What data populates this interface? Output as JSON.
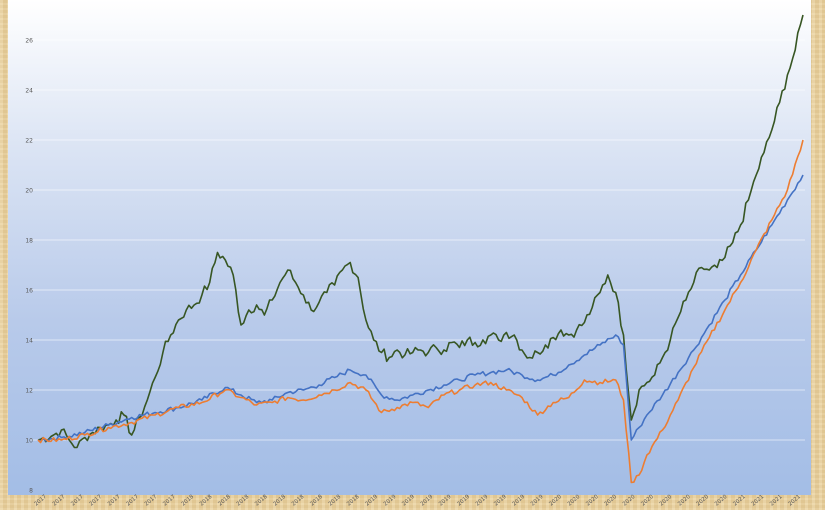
{
  "chart_data": {
    "type": "line",
    "title": "",
    "xlabel": "",
    "ylabel": "",
    "ylim": [
      8,
      27
    ],
    "y_ticks": [
      "8",
      "10",
      "12",
      "14",
      "16",
      "18",
      "20",
      "22",
      "24",
      "26"
    ],
    "x_tick_labels": [
      "2017",
      "2017",
      "2017",
      "2017",
      "2017",
      "2017",
      "2017",
      "2017",
      "2018",
      "2018",
      "2018",
      "2018",
      "2018",
      "2018",
      "2018",
      "2018",
      "2018",
      "2018",
      "2019",
      "2019",
      "2019",
      "2019",
      "2019",
      "2019",
      "2019",
      "2019",
      "2019",
      "2019",
      "2020",
      "2020",
      "2020",
      "2020",
      "2020",
      "2020",
      "2020",
      "2020",
      "2020",
      "2020",
      "2021",
      "2021",
      "2021",
      "2021"
    ],
    "grid": true,
    "legend": "none",
    "series": [
      {
        "color": "#375623",
        "points": [
          [
            0,
            10.0
          ],
          [
            2,
            10.2
          ],
          [
            3,
            10.4
          ],
          [
            4,
            10.0
          ],
          [
            5,
            9.7
          ],
          [
            6,
            10.1
          ],
          [
            7,
            10.3
          ],
          [
            8,
            10.5
          ],
          [
            9,
            10.6
          ],
          [
            10,
            10.8
          ],
          [
            11,
            11.0
          ],
          [
            12,
            10.2
          ],
          [
            13,
            10.9
          ],
          [
            14,
            11.6
          ],
          [
            15,
            12.5
          ],
          [
            16,
            13.5
          ],
          [
            17,
            14.2
          ],
          [
            18,
            14.8
          ],
          [
            19,
            15.2
          ],
          [
            20,
            15.4
          ],
          [
            21,
            15.8
          ],
          [
            22,
            16.3
          ],
          [
            23,
            17.5
          ],
          [
            24,
            17.2
          ],
          [
            25,
            16.6
          ],
          [
            26,
            14.6
          ],
          [
            27,
            15.2
          ],
          [
            28,
            15.4
          ],
          [
            29,
            15.0
          ],
          [
            30,
            15.6
          ],
          [
            31,
            16.3
          ],
          [
            32,
            16.8
          ],
          [
            33,
            16.3
          ],
          [
            34,
            15.8
          ],
          [
            35,
            15.2
          ],
          [
            36,
            15.5
          ],
          [
            37,
            15.9
          ],
          [
            38,
            16.2
          ],
          [
            39,
            16.8
          ],
          [
            40,
            17.1
          ],
          [
            41,
            16.5
          ],
          [
            42,
            14.8
          ],
          [
            43,
            14.0
          ],
          [
            44,
            13.5
          ],
          [
            45,
            13.3
          ],
          [
            46,
            13.6
          ],
          [
            47,
            13.4
          ],
          [
            48,
            13.5
          ],
          [
            49,
            13.6
          ],
          [
            50,
            13.5
          ],
          [
            51,
            13.7
          ],
          [
            52,
            13.6
          ],
          [
            53,
            13.9
          ],
          [
            54,
            13.7
          ],
          [
            55,
            14.0
          ],
          [
            56,
            13.9
          ],
          [
            57,
            14.0
          ],
          [
            58,
            14.2
          ],
          [
            59,
            14.0
          ],
          [
            60,
            14.3
          ],
          [
            61,
            14.2
          ],
          [
            62,
            13.6
          ],
          [
            63,
            13.3
          ],
          [
            64,
            13.5
          ],
          [
            65,
            13.8
          ],
          [
            66,
            14.1
          ],
          [
            67,
            14.4
          ],
          [
            68,
            14.2
          ],
          [
            69,
            14.4
          ],
          [
            70,
            14.7
          ],
          [
            71,
            15.3
          ],
          [
            72,
            15.9
          ],
          [
            73,
            16.6
          ],
          [
            74,
            15.9
          ],
          [
            75,
            14.2
          ],
          [
            76,
            10.8
          ],
          [
            77,
            12.0
          ],
          [
            78,
            12.3
          ],
          [
            79,
            12.6
          ],
          [
            80,
            13.3
          ],
          [
            81,
            14.0
          ],
          [
            82,
            14.9
          ],
          [
            83,
            15.6
          ],
          [
            84,
            16.3
          ],
          [
            85,
            16.9
          ],
          [
            86,
            16.8
          ],
          [
            87,
            16.9
          ],
          [
            88,
            17.3
          ],
          [
            89,
            17.9
          ],
          [
            90,
            18.6
          ],
          [
            91,
            19.6
          ],
          [
            92,
            20.6
          ],
          [
            93,
            21.5
          ],
          [
            94,
            22.4
          ],
          [
            95,
            23.5
          ],
          [
            96,
            24.6
          ],
          [
            97,
            25.6
          ],
          [
            98,
            27.0
          ]
        ]
      },
      {
        "color": "#4472c4",
        "points": [
          [
            0,
            10.0
          ],
          [
            3,
            10.1
          ],
          [
            6,
            10.3
          ],
          [
            9,
            10.6
          ],
          [
            12,
            10.9
          ],
          [
            15,
            11.1
          ],
          [
            18,
            11.3
          ],
          [
            21,
            11.6
          ],
          [
            24,
            12.1
          ],
          [
            26,
            11.8
          ],
          [
            28,
            11.5
          ],
          [
            30,
            11.6
          ],
          [
            32,
            11.9
          ],
          [
            34,
            12.0
          ],
          [
            36,
            12.2
          ],
          [
            38,
            12.5
          ],
          [
            40,
            12.8
          ],
          [
            42,
            12.6
          ],
          [
            44,
            11.8
          ],
          [
            46,
            11.6
          ],
          [
            48,
            11.8
          ],
          [
            50,
            12.0
          ],
          [
            52,
            12.2
          ],
          [
            54,
            12.4
          ],
          [
            56,
            12.6
          ],
          [
            58,
            12.7
          ],
          [
            60,
            12.8
          ],
          [
            62,
            12.6
          ],
          [
            64,
            12.4
          ],
          [
            66,
            12.6
          ],
          [
            68,
            13.0
          ],
          [
            70,
            13.4
          ],
          [
            72,
            13.8
          ],
          [
            74,
            14.2
          ],
          [
            75,
            13.8
          ],
          [
            76,
            10.0
          ],
          [
            77,
            10.5
          ],
          [
            78,
            11.0
          ],
          [
            80,
            11.8
          ],
          [
            82,
            12.7
          ],
          [
            84,
            13.6
          ],
          [
            86,
            14.6
          ],
          [
            88,
            15.6
          ],
          [
            90,
            16.6
          ],
          [
            92,
            17.6
          ],
          [
            94,
            18.6
          ],
          [
            96,
            19.6
          ],
          [
            98,
            20.6
          ]
        ]
      },
      {
        "color": "#ed7d31",
        "points": [
          [
            0,
            10.0
          ],
          [
            3,
            10.0
          ],
          [
            6,
            10.2
          ],
          [
            9,
            10.5
          ],
          [
            12,
            10.7
          ],
          [
            15,
            11.0
          ],
          [
            18,
            11.3
          ],
          [
            21,
            11.5
          ],
          [
            24,
            12.0
          ],
          [
            26,
            11.7
          ],
          [
            28,
            11.4
          ],
          [
            30,
            11.5
          ],
          [
            32,
            11.7
          ],
          [
            34,
            11.6
          ],
          [
            36,
            11.8
          ],
          [
            38,
            12.0
          ],
          [
            40,
            12.3
          ],
          [
            42,
            12.0
          ],
          [
            44,
            11.1
          ],
          [
            46,
            11.3
          ],
          [
            48,
            11.5
          ],
          [
            50,
            11.3
          ],
          [
            52,
            11.8
          ],
          [
            54,
            12.0
          ],
          [
            56,
            12.2
          ],
          [
            58,
            12.3
          ],
          [
            60,
            12.0
          ],
          [
            62,
            11.7
          ],
          [
            64,
            11.0
          ],
          [
            66,
            11.5
          ],
          [
            68,
            11.7
          ],
          [
            70,
            12.4
          ],
          [
            72,
            12.3
          ],
          [
            74,
            12.4
          ],
          [
            75,
            11.6
          ],
          [
            76,
            8.3
          ],
          [
            77,
            8.6
          ],
          [
            78,
            9.4
          ],
          [
            80,
            10.4
          ],
          [
            82,
            11.6
          ],
          [
            84,
            12.9
          ],
          [
            86,
            14.1
          ],
          [
            88,
            15.2
          ],
          [
            90,
            16.3
          ],
          [
            92,
            17.6
          ],
          [
            94,
            18.8
          ],
          [
            96,
            20.0
          ],
          [
            98,
            22.0
          ]
        ]
      }
    ]
  }
}
